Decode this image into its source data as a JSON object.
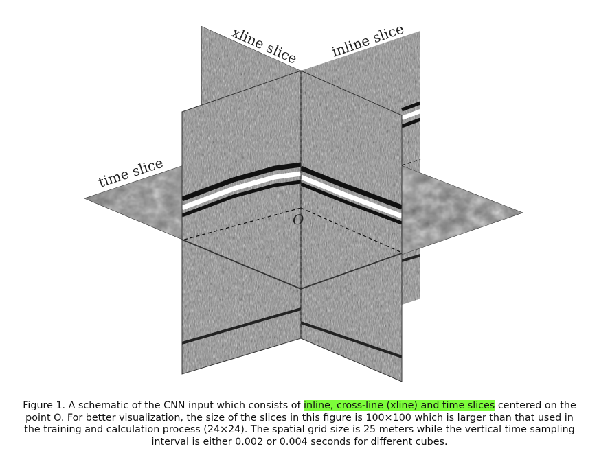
{
  "figure": {
    "labels": {
      "xline": "xline slice",
      "inline": "inline slice",
      "time": "time slice",
      "origin": "O"
    }
  },
  "caption": {
    "before": "Figure 1. A schematic of the CNN input which consists of ",
    "highlight": "inline, cross-line (xline) and time slices",
    "after": " centered on the point O. For better visualization, the size of the slices in this figure is 100×100 which is larger than that used in the training and calculation process (24×24). The spatial grid size is 25 meters while the vertical time sampling interval is either 0.002 or 0.004 seconds for different cubes.",
    "highlight_color": "#7cfc3a"
  }
}
